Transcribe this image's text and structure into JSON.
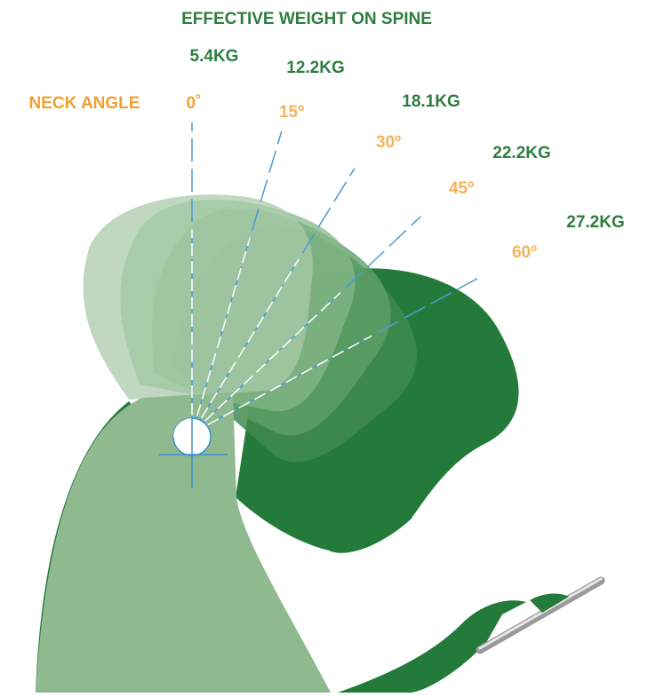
{
  "title": "EFFECTIVE WEIGHT ON SPINE",
  "angle_label": "NECK ANGLE",
  "positions": [
    {
      "angle": "0˚",
      "weight": "5.4KG"
    },
    {
      "angle": "15º",
      "weight": "12.2KG"
    },
    {
      "angle": "30º",
      "weight": "18.1KG"
    },
    {
      "angle": "45º",
      "weight": "22.2KG"
    },
    {
      "angle": "60º",
      "weight": "27.2KG"
    }
  ]
}
